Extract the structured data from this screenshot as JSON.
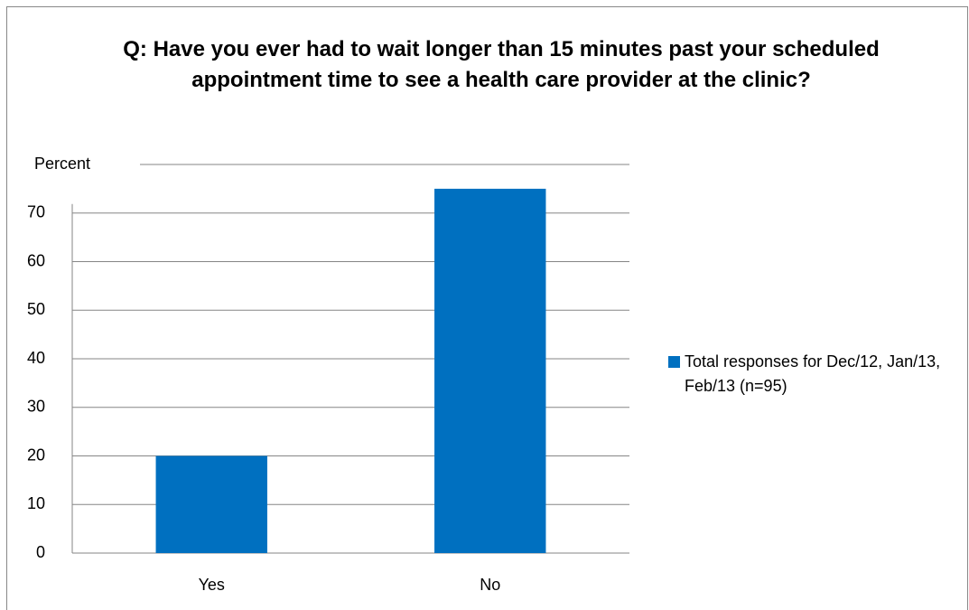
{
  "chart_data": {
    "type": "bar",
    "title": "Q:  Have you ever had to wait longer than 15 minutes past your scheduled appointment time to see a health care provider at the clinic?",
    "categories": [
      "Yes",
      "No"
    ],
    "series": [
      {
        "name": "Total responses for Dec/12, Jan/13, Feb/13 (n=95)",
        "color": "#0070c0",
        "values": [
          20,
          75
        ]
      }
    ],
    "ylim": [
      0,
      80
    ],
    "yticks": [
      0,
      10,
      20,
      30,
      40,
      50,
      60,
      70,
      {
        "value": 80,
        "label": "Percent"
      }
    ],
    "grid": true,
    "legend": "right"
  }
}
